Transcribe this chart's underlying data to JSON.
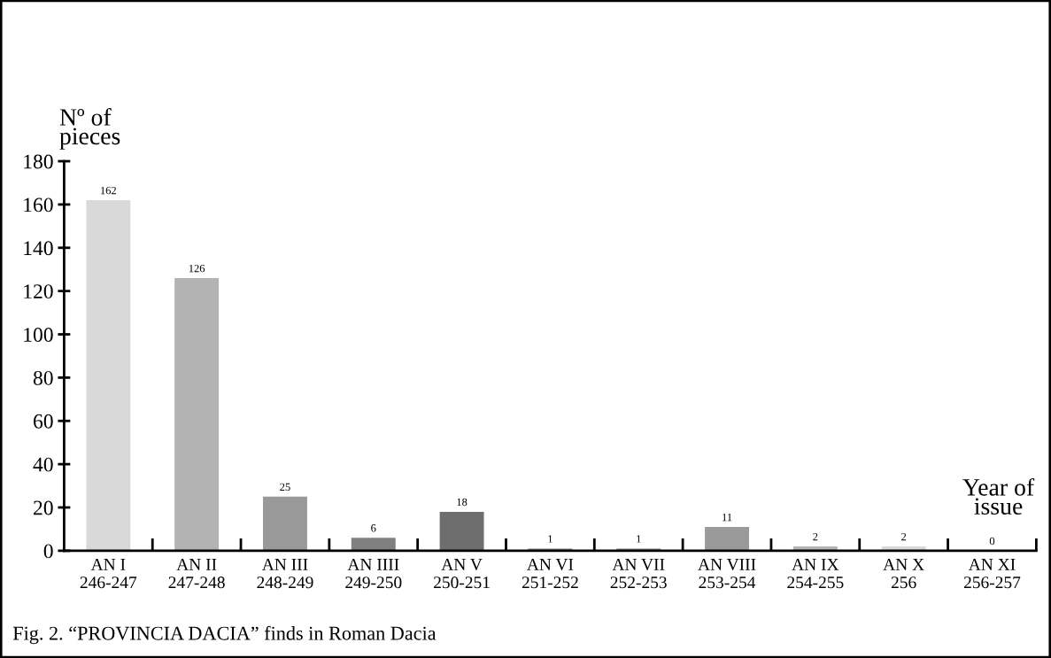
{
  "chart_data": {
    "type": "bar",
    "ylabel": "Nº of\npieces",
    "xlabel": "Year of\nissue",
    "categories": [
      "AN I\n246-247",
      "AN II\n247-248",
      "AN III\n248-249",
      "AN IIII\n249-250",
      "AN V\n250-251",
      "AN VI\n251-252",
      "AN VII\n252-253",
      "AN VIII\n253-254",
      "AN IX\n254-255",
      "AN X\n256",
      "AN XI\n256-257"
    ],
    "values": [
      162,
      126,
      25,
      6,
      18,
      1,
      1,
      11,
      2,
      2,
      0
    ],
    "colors": [
      "#d9d9d9",
      "#b3b3b3",
      "#999999",
      "#808080",
      "#6e6e6e",
      "#808080",
      "#808080",
      "#9a9a9a",
      "#b3b3b3",
      "#d9d9d9",
      "#d9d9d9"
    ],
    "ylim": [
      0,
      180
    ],
    "yticks": [
      0,
      20,
      40,
      60,
      80,
      100,
      120,
      140,
      160,
      180
    ],
    "data_labels": true,
    "grid": false,
    "annotations": [
      "Fig. 2. “PROVINCIA DACIA” finds in Roman Dacia"
    ]
  }
}
